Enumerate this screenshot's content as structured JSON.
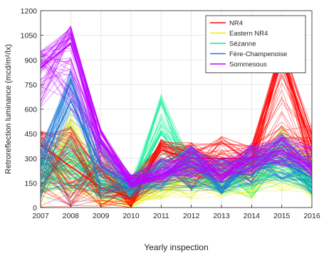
{
  "chart_data": {
    "type": "line",
    "title": "",
    "xlabel": "Yearly inspection",
    "ylabel": "Retroreflection luminance (mcd/m²/lx)",
    "x": [
      "2007",
      "2008",
      "2009",
      "2010",
      "2011",
      "2012",
      "2013",
      "2014",
      "2015",
      "2016"
    ],
    "xlim": [
      2007,
      2016
    ],
    "ylim": [
      0,
      1200
    ],
    "yticks": [
      0,
      150,
      300,
      450,
      600,
      750,
      900,
      1050,
      1200
    ],
    "grid": true,
    "legend_position": "top-right",
    "series": [
      {
        "name": "NR4",
        "color": "#ff0000",
        "representative_values": [
          380,
          250,
          120,
          60,
          350,
          300,
          300,
          300,
          900,
          380
        ],
        "band_low": [
          0,
          0,
          0,
          0,
          100,
          100,
          150,
          150,
          250,
          200
        ],
        "band_high": [
          470,
          520,
          350,
          200,
          420,
          400,
          440,
          380,
          1000,
          500
        ]
      },
      {
        "name": "Eastern NR4",
        "color": "#e6f000",
        "representative_values": [
          200,
          300,
          150,
          50,
          150,
          200,
          150,
          200,
          300,
          200
        ],
        "band_low": [
          0,
          50,
          0,
          0,
          50,
          50,
          50,
          50,
          100,
          50
        ],
        "band_high": [
          350,
          600,
          450,
          150,
          200,
          300,
          280,
          330,
          500,
          350
        ]
      },
      {
        "name": "Sézanne",
        "color": "#00f090",
        "representative_values": [
          180,
          280,
          150,
          100,
          450,
          250,
          200,
          200,
          300,
          150
        ],
        "band_low": [
          80,
          100,
          50,
          50,
          150,
          100,
          80,
          50,
          150,
          80
        ],
        "band_high": [
          300,
          450,
          300,
          180,
          700,
          350,
          300,
          320,
          480,
          300
        ]
      },
      {
        "name": "Fère-Champenoise",
        "color": "#1a7ad8",
        "representative_values": [
          250,
          650,
          250,
          130,
          200,
          250,
          150,
          250,
          280,
          180
        ],
        "band_low": [
          50,
          0,
          60,
          60,
          100,
          100,
          80,
          120,
          150,
          80
        ],
        "band_high": [
          380,
          850,
          420,
          200,
          300,
          380,
          300,
          380,
          440,
          320
        ]
      },
      {
        "name": "Sommesous",
        "color": "#c000ff",
        "representative_values": [
          850,
          1000,
          400,
          150,
          200,
          280,
          200,
          300,
          350,
          250
        ],
        "band_low": [
          600,
          600,
          250,
          120,
          150,
          180,
          150,
          200,
          250,
          180
        ],
        "band_high": [
          960,
          1110,
          480,
          200,
          300,
          380,
          300,
          400,
          450,
          380
        ]
      }
    ]
  }
}
